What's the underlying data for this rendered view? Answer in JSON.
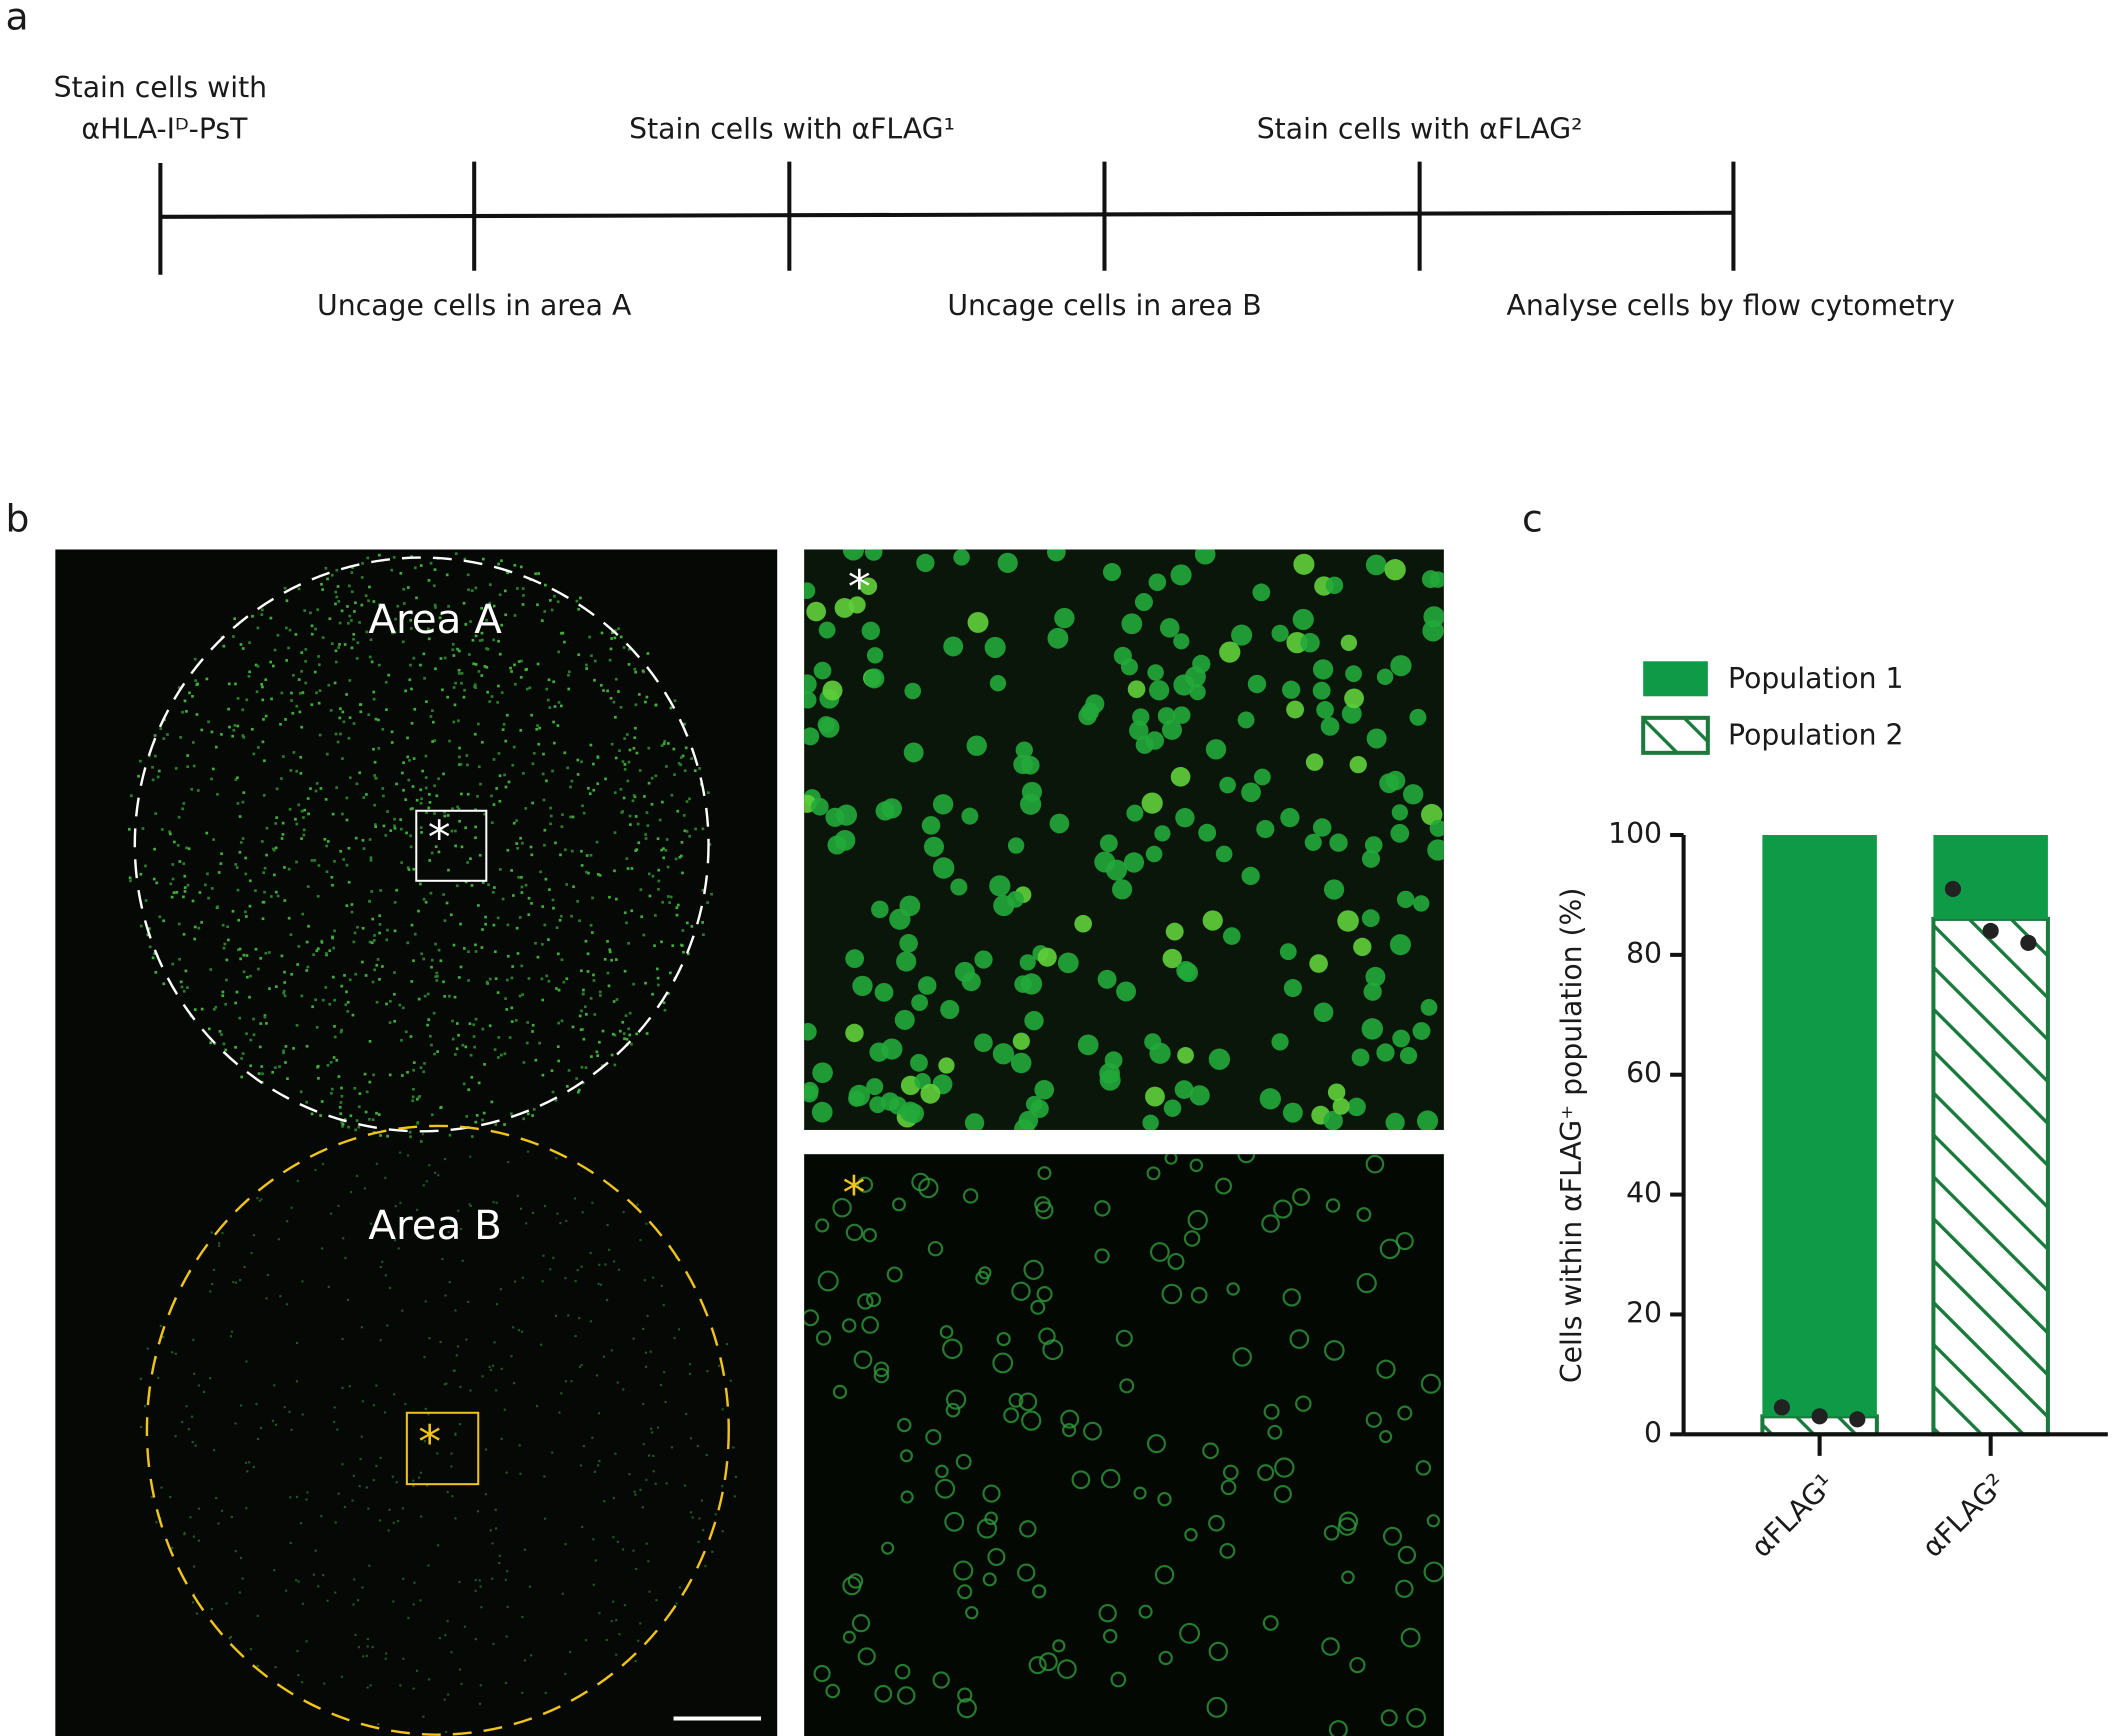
{
  "panel_labels": [
    "a",
    "b",
    "c"
  ],
  "timeline": {
    "above": [
      "Stain cells with",
      "αHLA-Iᴰ-PsT",
      "Stain cells with αFLAG¹",
      "Stain cells with αFLAG²"
    ],
    "below": [
      "Uncage cells in area A",
      "Uncage cells in area B",
      "Analyse cells by flow cytometry"
    ]
  },
  "micrographs": {
    "areas": [
      "Area A",
      "Area B"
    ],
    "markers": [
      "*",
      "*",
      "*",
      "*"
    ]
  },
  "chart_data": {
    "type": "stacked-bar",
    "y_label": "Cells within αFLAG⁺ population (%)",
    "categories": [
      "αFLAG¹",
      "αFLAG²"
    ],
    "series": [
      {
        "name": "Population 2",
        "color": "#1a7a3c",
        "pattern": "hatch",
        "values": [
          3,
          86
        ]
      },
      {
        "name": "Population 1",
        "color": "#0f9a48",
        "pattern": "solid",
        "values": [
          97,
          14
        ]
      }
    ],
    "points": {
      "color": "#222222",
      "values": [
        [
          4.5,
          3,
          2.5
        ],
        [
          91,
          84,
          82
        ]
      ]
    },
    "ylim": [
      0,
      100
    ],
    "yticks": [
      0,
      20,
      40,
      60,
      80,
      100
    ]
  }
}
